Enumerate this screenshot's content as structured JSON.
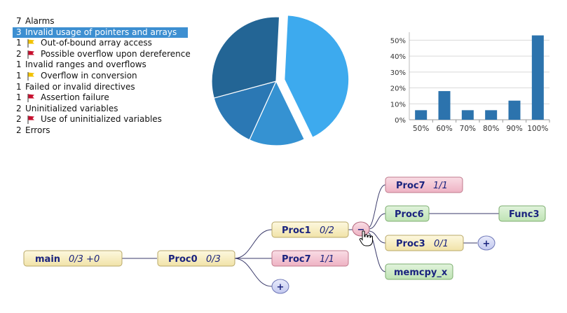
{
  "alarms": {
    "rows": [
      {
        "count": "7",
        "label": "Alarms",
        "level": 0,
        "flag": "",
        "selected": false
      },
      {
        "count": "3",
        "label": "Invalid usage of pointers and arrays",
        "level": 0,
        "flag": "",
        "selected": true
      },
      {
        "count": "1",
        "label": "Out-of-bound array access",
        "level": 1,
        "flag": "yellow",
        "selected": false
      },
      {
        "count": "2",
        "label": "Possible overflow upon dereference",
        "level": 1,
        "flag": "red",
        "selected": false
      },
      {
        "count": "1",
        "label": "Invalid ranges and overflows",
        "level": 0,
        "flag": "",
        "selected": false
      },
      {
        "count": "1",
        "label": "Overflow in conversion",
        "level": 1,
        "flag": "yellow",
        "selected": false
      },
      {
        "count": "1",
        "label": "Failed or invalid directives",
        "level": 0,
        "flag": "",
        "selected": false
      },
      {
        "count": "1",
        "label": "Assertion failure",
        "level": 1,
        "flag": "red",
        "selected": false
      },
      {
        "count": "2",
        "label": "Uninitialized variables",
        "level": 0,
        "flag": "",
        "selected": false
      },
      {
        "count": "2",
        "label": "Use of uninitialized variables",
        "level": 1,
        "flag": "red",
        "selected": false
      },
      {
        "count": "2",
        "label": "Errors",
        "level": 0,
        "flag": "",
        "selected": false
      }
    ]
  },
  "chart_data": [
    {
      "type": "pie",
      "values": [
        42,
        14,
        14,
        30
      ],
      "colors": [
        "#3daaee",
        "#3592d2",
        "#2b78b4",
        "#236595"
      ],
      "exploded": [
        0
      ]
    },
    {
      "type": "bar",
      "categories": [
        "50%",
        "60%",
        "70%",
        "80%",
        "90%",
        "100%"
      ],
      "values": [
        6,
        18,
        6,
        6,
        12,
        53
      ],
      "ylim": [
        0,
        55
      ],
      "yticks": [
        "0%",
        "10%",
        "20%",
        "30%",
        "40%",
        "50%"
      ],
      "grid": true,
      "color": "#2c73ad"
    }
  ],
  "tree": {
    "main": {
      "name": "main",
      "stats": "0/3 +0"
    },
    "proc0": {
      "name": "Proc0",
      "stats": "0/3"
    },
    "proc1": {
      "name": "Proc1",
      "stats": "0/2"
    },
    "proc7_mid": {
      "name": "Proc7",
      "stats": "1/1"
    },
    "proc7_top": {
      "name": "Proc7",
      "stats": "1/1"
    },
    "proc6": {
      "name": "Proc6",
      "stats": ""
    },
    "proc3": {
      "name": "Proc3",
      "stats": "0/1"
    },
    "memcpy": {
      "name": "memcpy_x",
      "stats": ""
    },
    "func3": {
      "name": "Func3",
      "stats": ""
    },
    "collapse_symbol": "−",
    "expand_symbol": "+"
  }
}
